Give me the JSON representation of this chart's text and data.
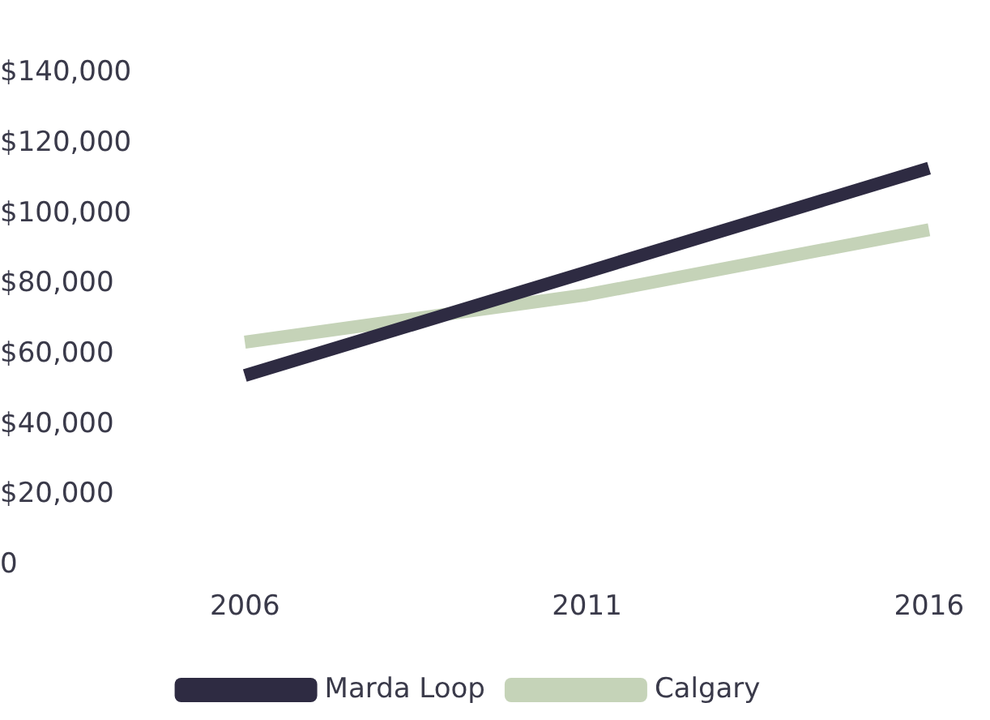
{
  "chart_data": {
    "type": "line",
    "categories": [
      "2006",
      "2011",
      "2016"
    ],
    "series": [
      {
        "name": "Marda Loop",
        "color": "#2e2b42",
        "values": [
          54000,
          83500,
          113000
        ]
      },
      {
        "name": "Calgary",
        "color": "#c5d3b8",
        "values": [
          63500,
          77000,
          95500
        ]
      }
    ],
    "ylim": [
      0,
      140000
    ],
    "yticks": [
      {
        "value": 0,
        "label": "0"
      },
      {
        "value": 20000,
        "label": "$20,000"
      },
      {
        "value": 40000,
        "label": "$40,000"
      },
      {
        "value": 60000,
        "label": "$60,000"
      },
      {
        "value": 80000,
        "label": "$80,000"
      },
      {
        "value": 100000,
        "label": "$100,000"
      },
      {
        "value": 120000,
        "label": "$120,000"
      },
      {
        "value": 140000,
        "label": "$140,000"
      }
    ],
    "grid": false,
    "legend": "bottom",
    "marker": "none",
    "line_style": "solid"
  }
}
